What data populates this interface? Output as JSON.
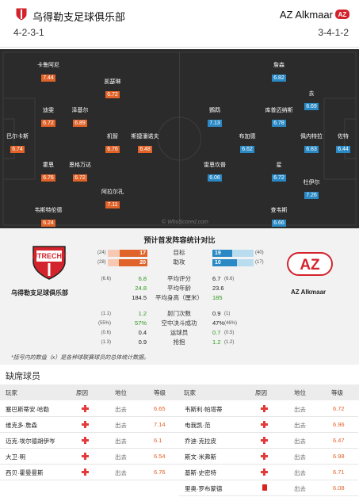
{
  "header": {
    "home_name": "乌得勒支足球俱乐部",
    "away_name": "AZ Alkmaar",
    "home_formation": "4-2-3-1",
    "away_formation": "3-4-1-2",
    "home_logo_icon": "utrecht-crest-icon",
    "away_logo_icon": "az-crest-icon"
  },
  "pitch": {
    "watermark": "© WhoScored.com",
    "home_color": "#e0632a",
    "away_color": "#2a89c4",
    "home_players": [
      {
        "name": "卡鲁阿尼",
        "rating": "7.44"
      },
      {
        "name": "凯瑟琳",
        "rating": "6.72"
      },
      {
        "name": "迪雯",
        "rating": "6.72"
      },
      {
        "name": "泽基尔",
        "rating": "6.89"
      },
      {
        "name": "巴尔卡斯",
        "rating": "6.74"
      },
      {
        "name": "机智",
        "rating": "6.76"
      },
      {
        "name": "斯捷潘诺夫",
        "rating": "6.48"
      },
      {
        "name": "霍恩",
        "rating": "6.76"
      },
      {
        "name": "恩格万达",
        "rating": "6.72"
      },
      {
        "name": "阿拉尔孔",
        "rating": "7.11"
      },
      {
        "name": "韦斯特伦德",
        "rating": "6.24"
      }
    ],
    "away_players": [
      {
        "name": "詹森",
        "rating": "6.82"
      },
      {
        "name": "去",
        "rating": "6.69"
      },
      {
        "name": "鹦鹉",
        "rating": "7.13"
      },
      {
        "name": "库普迈纳斯",
        "rating": "6.78"
      },
      {
        "name": "布加德",
        "rating": "6.62"
      },
      {
        "name": "佩内特拉",
        "rating": "6.83"
      },
      {
        "name": "佐特",
        "rating": "6.44"
      },
      {
        "name": "雷恩坎普",
        "rating": "6.06"
      },
      {
        "name": "星",
        "rating": "6.72"
      },
      {
        "name": "杜伊尔",
        "rating": "7.26"
      },
      {
        "name": "查韦斯",
        "rating": "6.66"
      }
    ]
  },
  "comparison": {
    "title": "预计首发阵容统计对比",
    "home_name": "乌得勒支足球俱乐部",
    "away_name": "AZ Alkmaar",
    "bars": [
      {
        "label": "目标",
        "home": "17",
        "home_paren": "(24)",
        "away": "19",
        "away_paren": "(40)",
        "home_frac": 0.7,
        "away_frac": 0.48
      },
      {
        "label": "助攻",
        "home": "20",
        "home_paren": "(28)",
        "away": "10",
        "away_paren": "(17)",
        "home_frac": 0.71,
        "away_frac": 0.59
      }
    ],
    "stats": [
      {
        "label": "平均评分",
        "home": "6.8",
        "home_paren": "(6.6)",
        "away": "6.7",
        "away_paren": "(6.6)",
        "home_green": true,
        "away_green": false
      },
      {
        "label": "平均年龄",
        "home": "24.8",
        "home_paren": "",
        "away": "23.6",
        "away_paren": "",
        "home_green": true,
        "away_green": false
      },
      {
        "label": "平均身高（厘米）",
        "home": "184.5",
        "home_paren": "",
        "away": "185",
        "away_paren": "",
        "home_green": false,
        "away_green": true
      },
      {
        "label": "射门次数",
        "home": "1.2",
        "home_paren": "(1.1)",
        "away": "0.9",
        "away_paren": "(1)",
        "home_green": true,
        "away_green": false
      },
      {
        "label": "空中决斗成功",
        "home": "57%",
        "home_paren": "(55%)",
        "away": "47%",
        "away_paren": "(46%)",
        "home_green": true,
        "away_green": false
      },
      {
        "label": "运球员",
        "home": "0.4",
        "home_paren": "(0.6)",
        "away": "0.7",
        "away_paren": "(0.5)",
        "home_green": false,
        "away_green": true
      },
      {
        "label": "抢抱",
        "home": "0.9",
        "home_paren": "(1.3)",
        "away": "1.2",
        "away_paren": "(1.2)",
        "home_green": false,
        "away_green": true
      }
    ],
    "note": "*括号内的数值（x）是各种球联赛球员的总体统计数据。"
  },
  "missing": {
    "title": "缺席球员",
    "headers": {
      "player": "玩家",
      "reason": "原因",
      "status": "地位",
      "rating": "等级"
    },
    "home": [
      {
        "name": "塞巴斯蒂安·哈勒",
        "reason": "injury",
        "status": "出去",
        "rating": "6.65"
      },
      {
        "name": "维克多·詹森",
        "reason": "injury",
        "status": "出去",
        "rating": "7.14"
      },
      {
        "name": "迈克·埃尔德胡伊岑",
        "reason": "injury",
        "status": "出去",
        "rating": "6.1"
      },
      {
        "name": "大卫·明",
        "reason": "injury",
        "status": "出去",
        "rating": "6.54"
      },
      {
        "name": "西贝·霍曼曼斯",
        "reason": "injury",
        "status": "出去",
        "rating": "6.76"
      }
    ],
    "away": [
      {
        "name": "韦斯利·帕塔蒂",
        "reason": "injury",
        "status": "出去",
        "rating": "6.72"
      },
      {
        "name": "电我凯·范",
        "reason": "injury",
        "status": "出去",
        "rating": "6.96"
      },
      {
        "name": "乔迪·克拉皮",
        "reason": "injury",
        "status": "出去",
        "rating": "6.47"
      },
      {
        "name": "斯文·米弗斯",
        "reason": "injury",
        "status": "出去",
        "rating": "6.98"
      },
      {
        "name": "基斯·史密特",
        "reason": "injury",
        "status": "出去",
        "rating": "6.71"
      },
      {
        "name": "里奥·罗布蒙德",
        "reason": "red-card",
        "status": "出去",
        "rating": "6.08"
      }
    ]
  }
}
